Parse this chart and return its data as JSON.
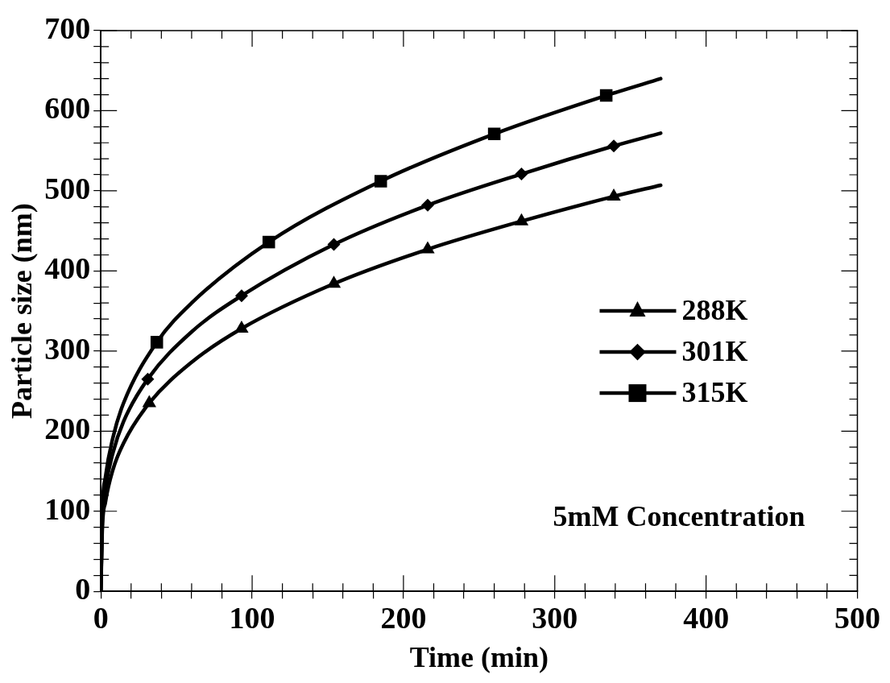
{
  "chart_data": {
    "type": "line",
    "xlabel": "Time (min)",
    "ylabel": "Particle size (nm)",
    "xlim": [
      0,
      500
    ],
    "ylim": [
      0,
      700
    ],
    "xticks": [
      0,
      {
        "value": 20,
        "label": null
      },
      {
        "value": 40,
        "label": null
      },
      {
        "value": 60,
        "label": null
      },
      {
        "value": 80,
        "label": null
      },
      100,
      {
        "value": 120,
        "label": null
      },
      {
        "value": 140,
        "label": null
      },
      {
        "value": 160,
        "label": null
      },
      {
        "value": 180,
        "label": null
      },
      200,
      {
        "value": 220,
        "label": null
      },
      {
        "value": 240,
        "label": null
      },
      {
        "value": 260,
        "label": null
      },
      {
        "value": 280,
        "label": null
      },
      300,
      {
        "value": 320,
        "label": null
      },
      {
        "value": 340,
        "label": null
      },
      {
        "value": 360,
        "label": null
      },
      {
        "value": 380,
        "label": null
      },
      400,
      {
        "value": 420,
        "label": null
      },
      {
        "value": 440,
        "label": null
      },
      {
        "value": 460,
        "label": null
      },
      {
        "value": 480,
        "label": null
      },
      500
    ],
    "yticks": [
      0,
      {
        "value": 20,
        "label": null
      },
      {
        "value": 40,
        "label": null
      },
      {
        "value": 60,
        "label": null
      },
      {
        "value": 80,
        "label": null
      },
      100,
      {
        "value": 120,
        "label": null
      },
      {
        "value": 140,
        "label": null
      },
      {
        "value": 160,
        "label": null
      },
      {
        "value": 180,
        "label": null
      },
      200,
      {
        "value": 220,
        "label": null
      },
      {
        "value": 240,
        "label": null
      },
      {
        "value": 260,
        "label": null
      },
      {
        "value": 280,
        "label": null
      },
      300,
      {
        "value": 320,
        "label": null
      },
      {
        "value": 340,
        "label": null
      },
      {
        "value": 360,
        "label": null
      },
      {
        "value": 380,
        "label": null
      },
      400,
      {
        "value": 420,
        "label": null
      },
      {
        "value": 440,
        "label": null
      },
      {
        "value": 460,
        "label": null
      },
      {
        "value": 480,
        "label": null
      },
      500,
      {
        "value": 520,
        "label": null
      },
      {
        "value": 540,
        "label": null
      },
      {
        "value": 560,
        "label": null
      },
      {
        "value": 580,
        "label": null
      },
      600,
      {
        "value": 620,
        "label": null
      },
      {
        "value": 640,
        "label": null
      },
      {
        "value": 660,
        "label": null
      },
      {
        "value": 680,
        "label": null
      },
      700
    ],
    "grid": false,
    "legend": "right",
    "line_style": "solid",
    "annotations": [
      "5mM Concentration"
    ],
    "series": [
      {
        "color": "#000000",
        "marker": "none",
        "x": [
          0,
          1,
          3,
          8,
          15,
          32,
          60,
          93,
          154,
          216,
          278,
          339,
          370
        ],
        "values": [
          0,
          79,
          111,
          152,
          185,
          235,
          286,
          328,
          384,
          427,
          462,
          493,
          507
        ]
      },
      {
        "type": "scatter",
        "name": "288K",
        "color": "#000000",
        "marker": "triangle",
        "x": [
          32,
          93,
          154,
          216,
          278,
          339
        ],
        "values": [
          235,
          328,
          384,
          427,
          462,
          493
        ]
      },
      {
        "color": "#000000",
        "marker": "none",
        "x": [
          0,
          1,
          3,
          8,
          15,
          31,
          60,
          93,
          154,
          216,
          278,
          339,
          370
        ],
        "values": [
          0,
          91,
          128,
          173,
          212,
          265,
          324,
          369,
          433,
          482,
          521,
          556,
          572
        ]
      },
      {
        "type": "scatter",
        "name": "301K",
        "color": "#000000",
        "marker": "diamond",
        "x": [
          31,
          93,
          154,
          216,
          278,
          339
        ],
        "values": [
          265,
          369,
          433,
          482,
          521,
          556
        ]
      },
      {
        "color": "#000000",
        "marker": "none",
        "x": [
          0,
          1,
          3,
          8,
          15,
          37,
          60,
          111,
          185,
          260,
          334,
          370
        ],
        "values": [
          0,
          101,
          142,
          192,
          235,
          311,
          360,
          436,
          512,
          571,
          619,
          640
        ]
      },
      {
        "type": "scatter",
        "name": "315K",
        "color": "#000000",
        "marker": "square",
        "x": [
          37,
          111,
          185,
          260,
          334
        ],
        "values": [
          311,
          436,
          512,
          571,
          619
        ]
      }
    ]
  }
}
